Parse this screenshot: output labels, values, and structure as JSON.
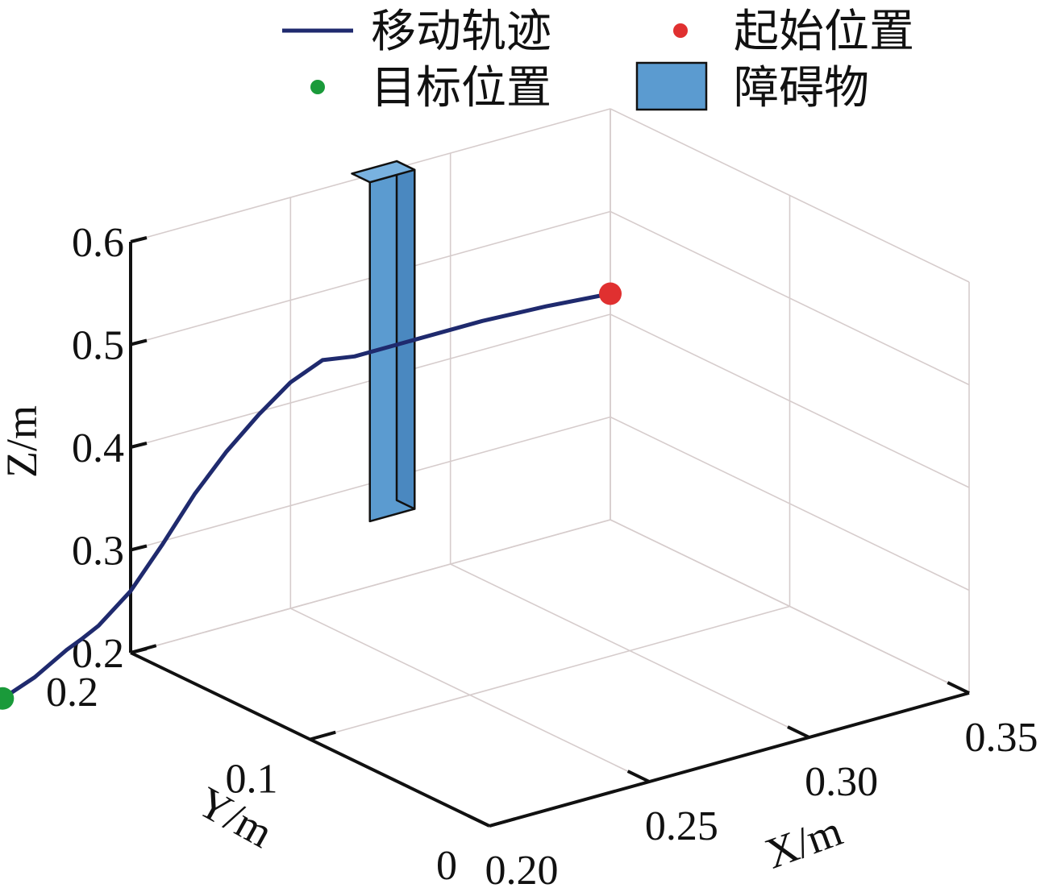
{
  "chart_data": {
    "type": "line3d",
    "legend": {
      "placement": "top",
      "entries": [
        {
          "label": "移动轨迹",
          "kind": "line",
          "color": "#1f2a6e"
        },
        {
          "label": "起始位置",
          "kind": "marker",
          "color": "#e03030"
        },
        {
          "label": "目标位置",
          "kind": "marker",
          "color": "#1a9a3a"
        },
        {
          "label": "障碍物",
          "kind": "patch",
          "color": "#5b9bd0"
        }
      ]
    },
    "axes": {
      "x": {
        "label": "X/m",
        "range": [
          0.2,
          0.35
        ],
        "ticks": [
          0.2,
          0.25,
          0.3,
          0.35
        ],
        "tick_labels": [
          "0.20",
          "0.25",
          "0.30",
          "0.35"
        ]
      },
      "y": {
        "label": "Y/m",
        "range": [
          0,
          0.2
        ],
        "ticks": [
          0,
          0.1,
          0.2
        ],
        "tick_labels": [
          "0",
          "0.1",
          "0.2"
        ]
      },
      "z": {
        "label": "Z/m",
        "range": [
          0.2,
          0.6
        ],
        "ticks": [
          0.2,
          0.3,
          0.4,
          0.5,
          0.6
        ],
        "tick_labels": [
          "0.2",
          "0.3",
          "0.4",
          "0.5",
          "0.6"
        ]
      }
    },
    "grid": true,
    "series": [
      {
        "name": "移动轨迹",
        "color": "#1f2a6e",
        "points": [
          [
            0.35,
            0.2,
            0.42
          ],
          [
            0.33,
            0.2,
            0.425
          ],
          [
            0.31,
            0.2,
            0.428
          ],
          [
            0.29,
            0.2,
            0.428
          ],
          [
            0.27,
            0.2,
            0.428
          ],
          [
            0.26,
            0.2,
            0.433
          ],
          [
            0.25,
            0.2,
            0.42
          ],
          [
            0.24,
            0.2,
            0.397
          ],
          [
            0.23,
            0.2,
            0.37
          ],
          [
            0.22,
            0.2,
            0.337
          ],
          [
            0.21,
            0.2,
            0.297
          ],
          [
            0.2,
            0.2,
            0.26
          ],
          [
            0.19,
            0.2,
            0.235
          ],
          [
            0.185,
            0.2,
            0.227
          ],
          [
            0.18,
            0.2,
            0.22
          ],
          [
            0.17,
            0.2,
            0.202
          ],
          [
            0.16,
            0.2,
            0.19
          ]
        ]
      }
    ],
    "start_point": {
      "name": "起始位置",
      "x": 0.35,
      "y": 0.2,
      "z": 0.42,
      "color": "#e03030"
    },
    "target_point": {
      "name": "目标位置",
      "x": 0.16,
      "y": 0.2,
      "z": 0.19,
      "color": "#1a9a3a"
    },
    "obstacle": {
      "name": "障碍物",
      "x_range": [
        0.272,
        0.286
      ],
      "y_range": [
        0.195,
        0.205
      ],
      "z_range": [
        0.27,
        0.6
      ],
      "color": "#5b9bd0"
    }
  }
}
